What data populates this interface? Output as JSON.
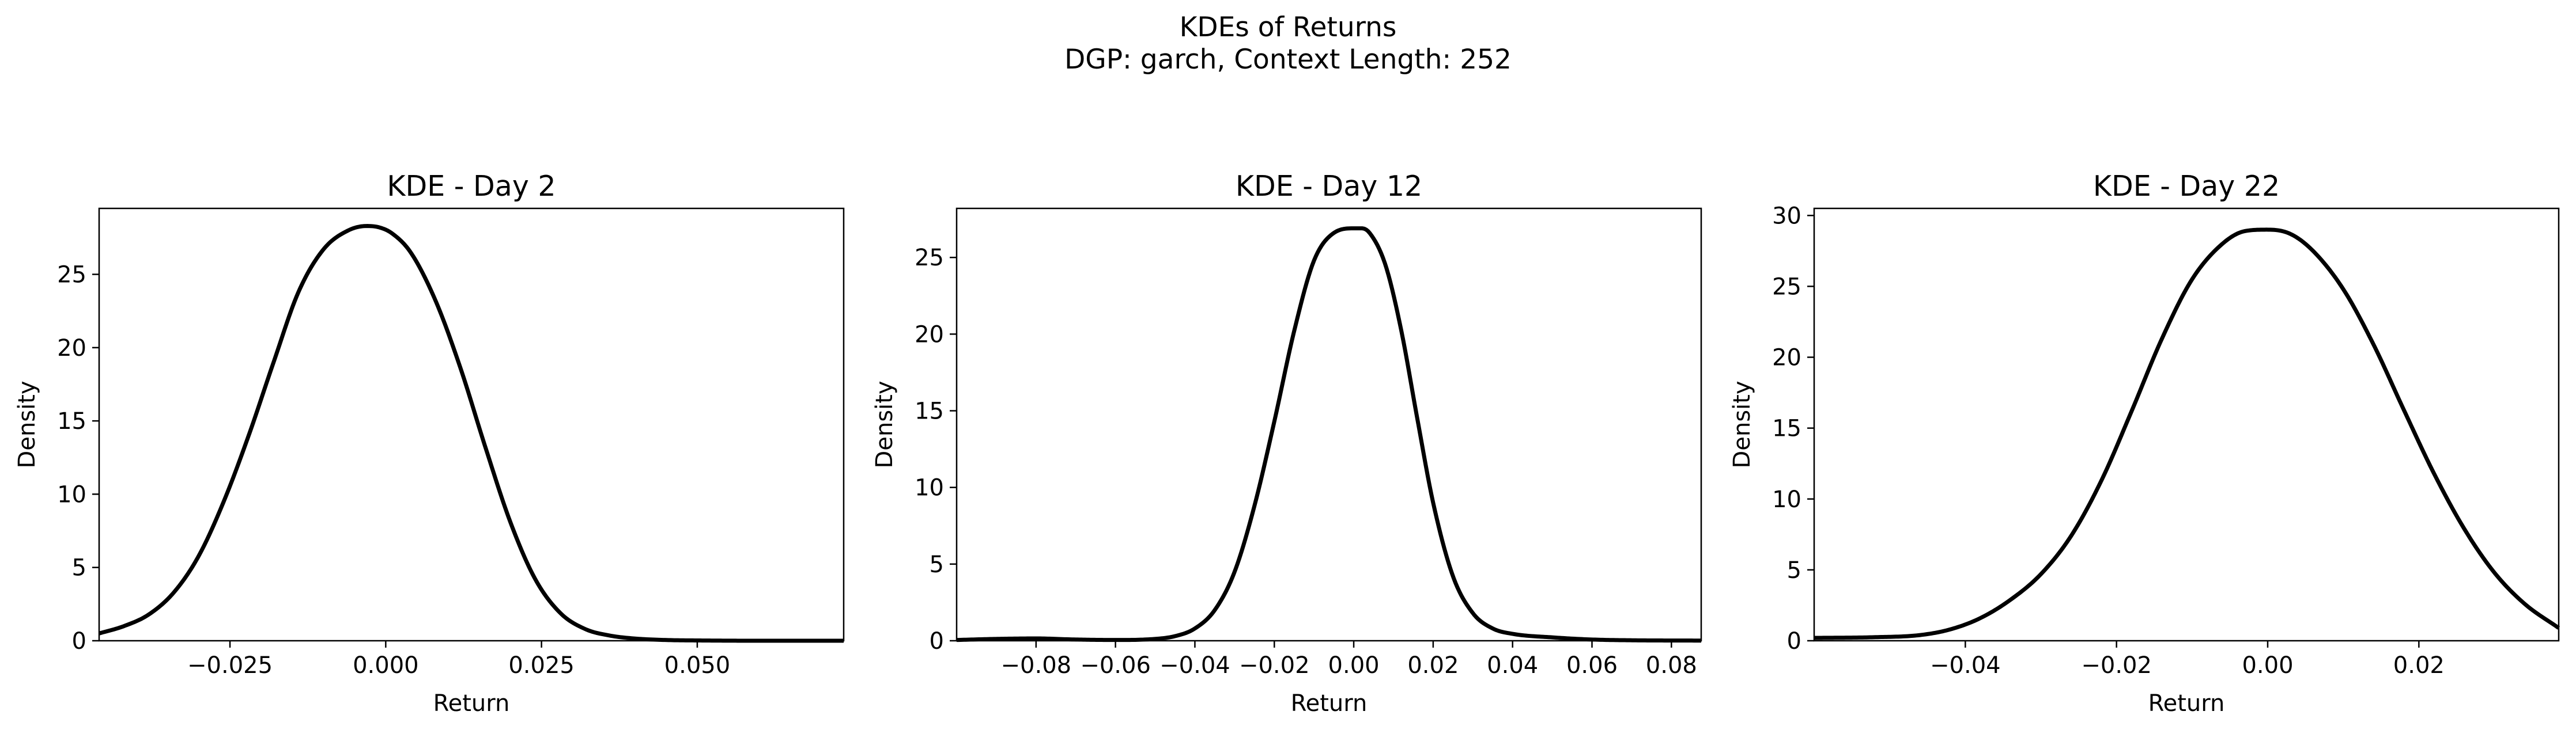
{
  "figure": {
    "title_line1": "KDEs of Returns",
    "title_line2": "DGP: garch, Context Length: 252"
  },
  "chart_data": [
    {
      "type": "line",
      "title": "KDE - Day 2",
      "xlabel": "Return",
      "ylabel": "Density",
      "xlim": [
        -0.046,
        0.0735
      ],
      "ylim": [
        0,
        29.5
      ],
      "xticks": [
        -0.025,
        0.0,
        0.025,
        0.05
      ],
      "xtick_labels": [
        "−0.025",
        "0.000",
        "0.025",
        "0.050"
      ],
      "yticks": [
        0,
        5,
        10,
        15,
        20,
        25
      ],
      "grid": false,
      "series": [
        {
          "color": "#000000",
          "x": [
            -0.046,
            -0.042,
            -0.038,
            -0.034,
            -0.03,
            -0.026,
            -0.022,
            -0.018,
            -0.014,
            -0.01,
            -0.006,
            -0.003,
            -0.001,
            0.001,
            0.004,
            0.008,
            0.012,
            0.016,
            0.02,
            0.024,
            0.028,
            0.032,
            0.036,
            0.04,
            0.045,
            0.05,
            0.06,
            0.0735
          ],
          "y": [
            0.5,
            1.0,
            1.8,
            3.3,
            5.8,
            9.5,
            14.0,
            19.0,
            23.8,
            26.7,
            28.0,
            28.3,
            28.2,
            27.8,
            26.5,
            23.2,
            18.6,
            13.2,
            8.1,
            4.2,
            1.9,
            0.8,
            0.35,
            0.15,
            0.05,
            0.02,
            0.0,
            0.0
          ]
        }
      ]
    },
    {
      "type": "line",
      "title": "KDE - Day 12",
      "xlabel": "Return",
      "ylabel": "Density",
      "xlim": [
        -0.1,
        0.0875
      ],
      "ylim": [
        0,
        28.2
      ],
      "xticks": [
        -0.08,
        -0.06,
        -0.04,
        -0.02,
        0.0,
        0.02,
        0.04,
        0.06,
        0.08
      ],
      "xtick_labels": [
        "−0.08",
        "−0.06",
        "−0.04",
        "−0.02",
        "0.00",
        "0.02",
        "0.04",
        "0.06",
        "0.08"
      ],
      "yticks": [
        0,
        5,
        10,
        15,
        20,
        25
      ],
      "grid": false,
      "series": [
        {
          "color": "#000000",
          "x": [
            -0.1,
            -0.09,
            -0.08,
            -0.07,
            -0.06,
            -0.05,
            -0.045,
            -0.04,
            -0.035,
            -0.03,
            -0.025,
            -0.02,
            -0.015,
            -0.01,
            -0.005,
            0.0,
            0.002,
            0.004,
            0.008,
            0.012,
            0.016,
            0.02,
            0.025,
            0.03,
            0.035,
            0.04,
            0.05,
            0.06,
            0.07,
            0.0875
          ],
          "y": [
            0.05,
            0.12,
            0.15,
            0.08,
            0.05,
            0.12,
            0.3,
            0.8,
            2.0,
            4.5,
            8.8,
            14.3,
            20.2,
            24.8,
            26.6,
            26.9,
            26.9,
            26.6,
            24.5,
            20.2,
            14.5,
            9.0,
            4.2,
            1.8,
            0.8,
            0.45,
            0.22,
            0.08,
            0.03,
            0.01
          ]
        }
      ]
    },
    {
      "type": "line",
      "title": "KDE - Day 22",
      "xlabel": "Return",
      "ylabel": "Density",
      "xlim": [
        -0.06,
        0.0385
      ],
      "ylim": [
        0,
        30.5
      ],
      "xticks": [
        -0.04,
        -0.02,
        0.0,
        0.02
      ],
      "xtick_labels": [
        "−0.04",
        "−0.02",
        "0.00",
        "0.02"
      ],
      "yticks": [
        0,
        5,
        10,
        15,
        20,
        25,
        30
      ],
      "grid": false,
      "series": [
        {
          "color": "#000000",
          "x": [
            -0.06,
            -0.052,
            -0.046,
            -0.042,
            -0.038,
            -0.034,
            -0.03,
            -0.026,
            -0.022,
            -0.018,
            -0.014,
            -0.01,
            -0.006,
            -0.003,
            0.0,
            0.003,
            0.006,
            0.01,
            0.014,
            0.018,
            0.022,
            0.026,
            0.03,
            0.034,
            0.0385
          ],
          "y": [
            0.2,
            0.25,
            0.4,
            0.8,
            1.6,
            2.9,
            4.7,
            7.4,
            11.3,
            16.2,
            21.3,
            25.5,
            28.0,
            28.9,
            29.0,
            28.7,
            27.5,
            24.8,
            20.9,
            16.3,
            11.8,
            7.9,
            4.8,
            2.6,
            0.9
          ]
        }
      ]
    }
  ]
}
